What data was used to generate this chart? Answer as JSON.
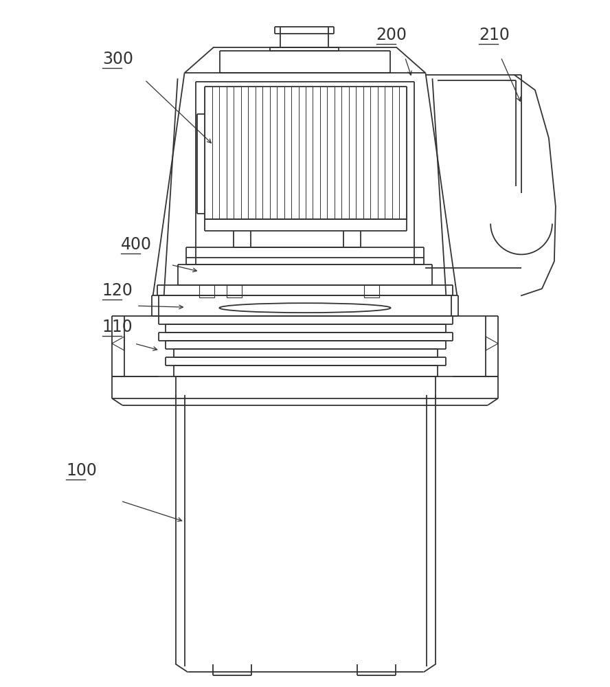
{
  "background_color": "#ffffff",
  "line_color": "#333333",
  "lw": 1.3,
  "tlw": 0.8,
  "labels": [
    "100",
    "110",
    "120",
    "200",
    "210",
    "300",
    "400"
  ]
}
